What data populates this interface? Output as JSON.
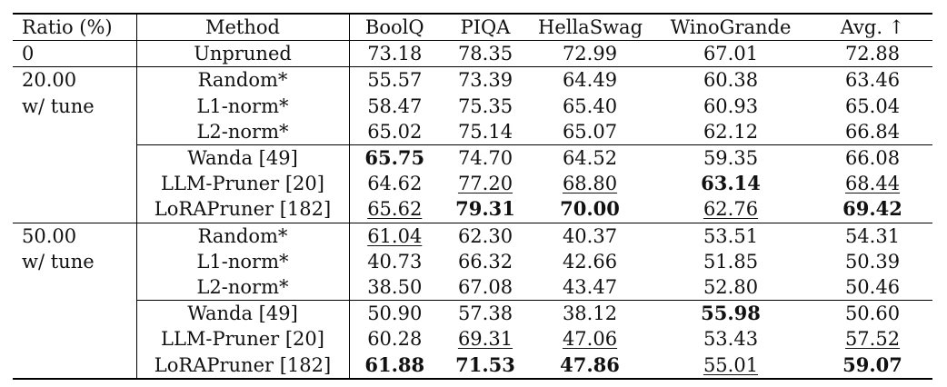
{
  "table": {
    "headers": [
      "Ratio (%)",
      "Method",
      "BoolQ",
      "PIQA",
      "HellaSwag",
      "WinoGrande",
      "Avg. ↑"
    ],
    "baseline": {
      "ratio": "0",
      "method": "Unpruned",
      "values": [
        "73.18",
        "78.35",
        "72.99",
        "67.01",
        "72.88"
      ]
    },
    "groups": [
      {
        "ratio_line1": "20.00",
        "ratio_line2": "w/ tune",
        "rows": [
          {
            "method": "Random*",
            "values": [
              "55.57",
              "73.39",
              "64.49",
              "60.38",
              "63.46"
            ],
            "style": [
              "",
              "",
              "",
              "",
              ""
            ]
          },
          {
            "method": "L1-norm*",
            "values": [
              "58.47",
              "75.35",
              "65.40",
              "60.93",
              "65.04"
            ],
            "style": [
              "",
              "",
              "",
              "",
              ""
            ]
          },
          {
            "method": "L2-norm*",
            "values": [
              "65.02",
              "75.14",
              "65.07",
              "62.12",
              "66.84"
            ],
            "style": [
              "",
              "",
              "",
              "",
              ""
            ]
          },
          {
            "method": "Wanda [49]",
            "values": [
              "65.75",
              "74.70",
              "64.52",
              "59.35",
              "66.08"
            ],
            "style": [
              "b",
              "",
              "",
              "",
              ""
            ]
          },
          {
            "method": "LLM-Pruner [20]",
            "values": [
              "64.62",
              "77.20",
              "68.80",
              "63.14",
              "68.44"
            ],
            "style": [
              "",
              "u",
              "u",
              "b",
              "u"
            ]
          },
          {
            "method": "LoRAPruner [182]",
            "values": [
              "65.62",
              "79.31",
              "70.00",
              "62.76",
              "69.42"
            ],
            "style": [
              "u",
              "b",
              "b",
              "u",
              "b"
            ]
          }
        ]
      },
      {
        "ratio_line1": "50.00",
        "ratio_line2": "w/ tune",
        "rows": [
          {
            "method": "Random*",
            "values": [
              "61.04",
              "62.30",
              "40.37",
              "53.51",
              "54.31"
            ],
            "style": [
              "u",
              "",
              "",
              "",
              ""
            ]
          },
          {
            "method": "L1-norm*",
            "values": [
              "40.73",
              "66.32",
              "42.66",
              "51.85",
              "50.39"
            ],
            "style": [
              "",
              "",
              "",
              "",
              ""
            ]
          },
          {
            "method": "L2-norm*",
            "values": [
              "38.50",
              "67.08",
              "43.47",
              "52.80",
              "50.46"
            ],
            "style": [
              "",
              "",
              "",
              "",
              ""
            ]
          },
          {
            "method": "Wanda [49]",
            "values": [
              "50.90",
              "57.38",
              "38.12",
              "55.98",
              "50.60"
            ],
            "style": [
              "",
              "",
              "",
              "b",
              ""
            ]
          },
          {
            "method": "LLM-Pruner [20]",
            "values": [
              "60.28",
              "69.31",
              "47.06",
              "53.43",
              "57.52"
            ],
            "style": [
              "",
              "u",
              "u",
              "",
              "u"
            ]
          },
          {
            "method": "LoRAPruner [182]",
            "values": [
              "61.88",
              "71.53",
              "47.86",
              "55.01",
              "59.07"
            ],
            "style": [
              "b",
              "b",
              "b",
              "u",
              "b"
            ]
          }
        ]
      }
    ]
  }
}
